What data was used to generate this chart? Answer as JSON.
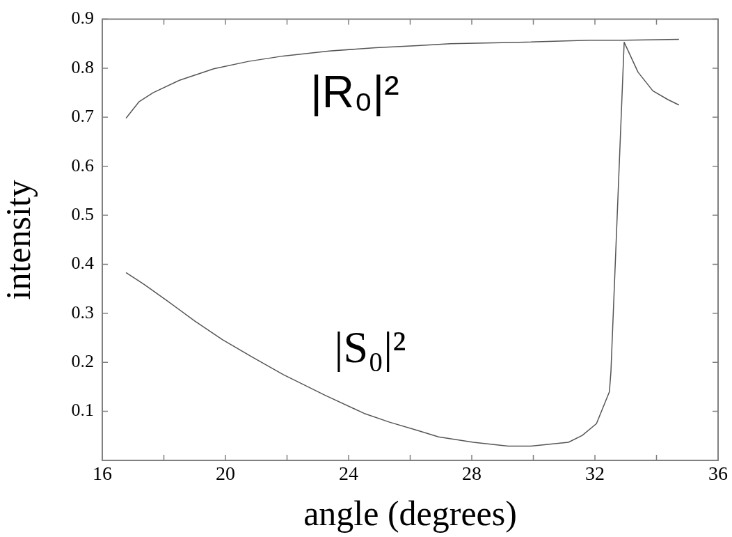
{
  "chart_data": {
    "type": "line",
    "xlabel": "angle (degrees)",
    "ylabel": "intensity",
    "xlim": [
      16,
      36
    ],
    "xticks": [
      16,
      {
        "value": 18,
        "label": null
      },
      20,
      {
        "value": 22,
        "label": null
      },
      24,
      {
        "value": 26,
        "label": null
      },
      28,
      {
        "value": 30,
        "label": null
      },
      32,
      {
        "value": 34,
        "label": null
      },
      36
    ],
    "ylim": [
      0,
      0.9
    ],
    "yticks": [
      0.1,
      0.2,
      0.3,
      0.4,
      0.5,
      0.6,
      0.7,
      0.8,
      0.9
    ],
    "grid": false,
    "legend": false,
    "marker": "none",
    "line_style": "solid",
    "series": [
      {
        "name": "|R₀|²",
        "color": "#555555",
        "x": [
          16.77,
          17.2,
          17.65,
          18.49,
          19.62,
          20.75,
          21.88,
          23.37,
          24.88,
          26.24,
          27.3,
          29.56,
          31.82,
          32.95,
          34.73
        ],
        "values": [
          0.698,
          0.732,
          0.75,
          0.775,
          0.799,
          0.814,
          0.825,
          0.835,
          0.842,
          0.846,
          0.85,
          0.853,
          0.857,
          0.857,
          0.859
        ]
      },
      {
        "name": "|S₀|²",
        "color": "#555555",
        "x": [
          16.77,
          17.36,
          18.1,
          19.01,
          19.91,
          20.81,
          21.88,
          23.23,
          24.5,
          25.33,
          26.24,
          26.92,
          28.05,
          29.18,
          29.92,
          31.14,
          31.59,
          32.05,
          32.47,
          32.52,
          32.95,
          33.4,
          33.88,
          34.37,
          34.73
        ],
        "values": [
          0.383,
          0.359,
          0.326,
          0.284,
          0.246,
          0.213,
          0.175,
          0.133,
          0.096,
          0.078,
          0.061,
          0.048,
          0.037,
          0.029,
          0.029,
          0.037,
          0.051,
          0.075,
          0.14,
          0.181,
          0.853,
          0.792,
          0.754,
          0.736,
          0.725
        ]
      }
    ]
  }
}
